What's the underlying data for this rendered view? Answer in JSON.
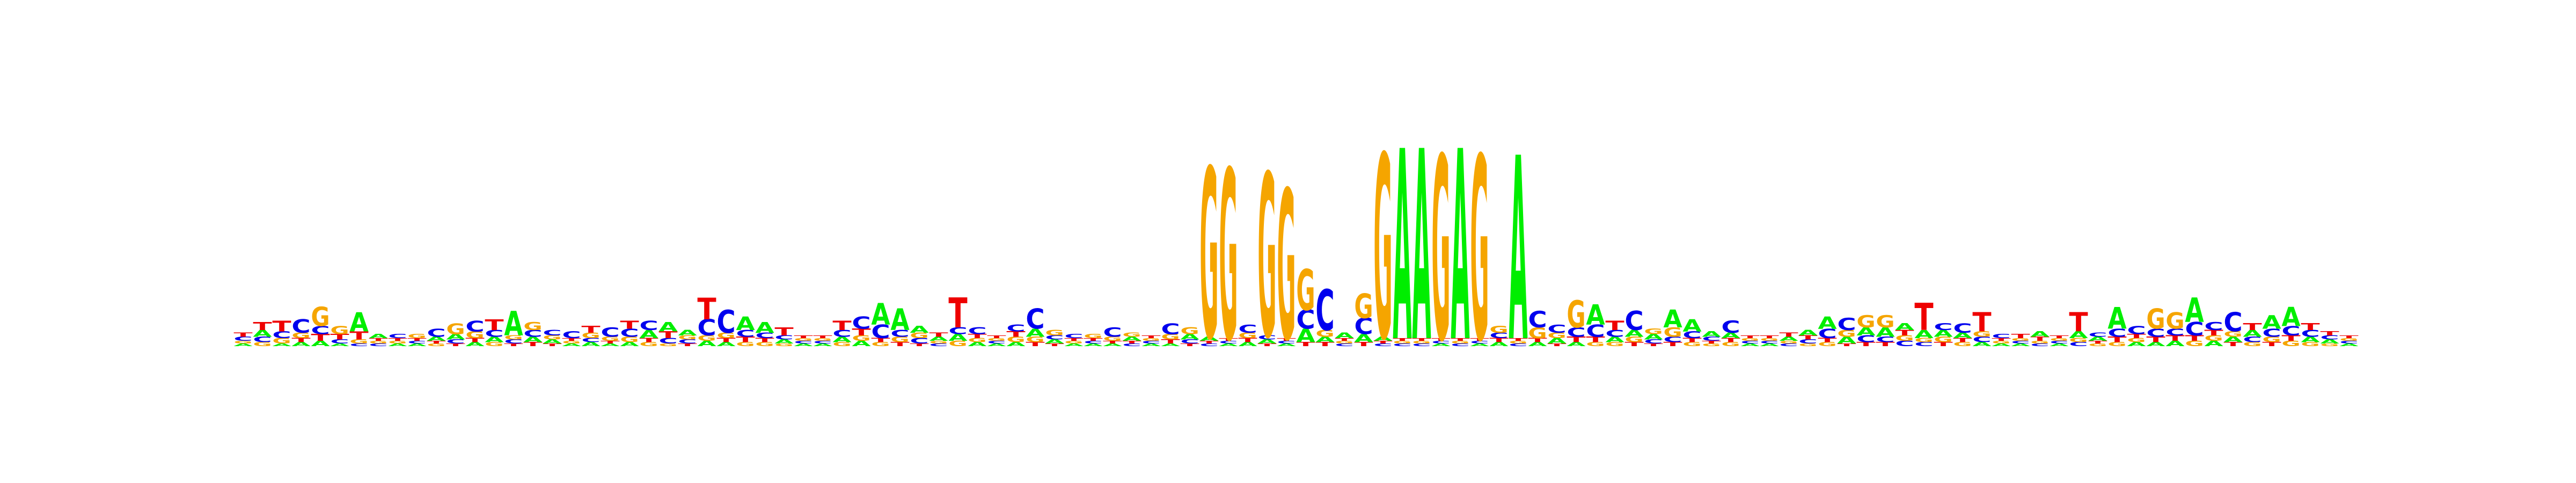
{
  "figure": {
    "type": "sequence-logo",
    "alphabet": [
      "A",
      "C",
      "G",
      "T"
    ],
    "colors": {
      "A": "#00ee00",
      "C": "#0000ee",
      "G": "#f5a500",
      "T": "#ee0000"
    },
    "ymax_bits": 2.0
  },
  "chart_data": {
    "type": "sequence-logo",
    "positions": [
      {
        "A": 0.02,
        "C": 0.03,
        "G": 0.02,
        "T": 0.03
      },
      {
        "A": 0.05,
        "C": 0.04,
        "G": 0.03,
        "T": 0.06
      },
      {
        "A": 0.02,
        "C": 0.05,
        "G": 0.04,
        "T": 0.08
      },
      {
        "A": 0.03,
        "C": 0.1,
        "G": 0.04,
        "T": 0.03
      },
      {
        "A": 0.04,
        "C": 0.06,
        "G": 0.14,
        "T": 0.05
      },
      {
        "A": 0.02,
        "C": 0.03,
        "G": 0.06,
        "T": 0.04
      },
      {
        "A": 0.14,
        "C": 0.02,
        "G": 0.03,
        "T": 0.06
      },
      {
        "A": 0.03,
        "C": 0.02,
        "G": 0.02,
        "T": 0.02
      },
      {
        "A": 0.02,
        "C": 0.03,
        "G": 0.02,
        "T": 0.02
      },
      {
        "A": 0.02,
        "C": 0.02,
        "G": 0.03,
        "T": 0.02
      },
      {
        "A": 0.03,
        "C": 0.06,
        "G": 0.02,
        "T": 0.02
      },
      {
        "A": 0.04,
        "C": 0.03,
        "G": 0.08,
        "T": 0.02
      },
      {
        "A": 0.03,
        "C": 0.08,
        "G": 0.05,
        "T": 0.03
      },
      {
        "A": 0.04,
        "C": 0.05,
        "G": 0.03,
        "T": 0.08
      },
      {
        "A": 0.18,
        "C": 0.03,
        "G": 0.03,
        "T": 0.02
      },
      {
        "A": 0.04,
        "C": 0.05,
        "G": 0.06,
        "T": 0.03
      },
      {
        "A": 0.03,
        "C": 0.04,
        "G": 0.03,
        "T": 0.02
      },
      {
        "A": 0.02,
        "C": 0.05,
        "G": 0.02,
        "T": 0.02
      },
      {
        "A": 0.03,
        "C": 0.03,
        "G": 0.04,
        "T": 0.05
      },
      {
        "A": 0.02,
        "C": 0.07,
        "G": 0.03,
        "T": 0.02
      },
      {
        "A": 0.03,
        "C": 0.06,
        "G": 0.04,
        "T": 0.06
      },
      {
        "A": 0.06,
        "C": 0.07,
        "G": 0.03,
        "T": 0.03
      },
      {
        "A": 0.07,
        "C": 0.04,
        "G": 0.02,
        "T": 0.05
      },
      {
        "A": 0.04,
        "C": 0.03,
        "G": 0.03,
        "T": 0.02
      },
      {
        "A": 0.04,
        "C": 0.12,
        "G": 0.04,
        "T": 0.16
      },
      {
        "A": 0.03,
        "C": 0.17,
        "G": 0.04,
        "T": 0.03
      },
      {
        "A": 0.1,
        "C": 0.05,
        "G": 0.03,
        "T": 0.04
      },
      {
        "A": 0.08,
        "C": 0.04,
        "G": 0.03,
        "T": 0.03
      },
      {
        "A": 0.03,
        "C": 0.03,
        "G": 0.02,
        "T": 0.06
      },
      {
        "A": 0.02,
        "C": 0.02,
        "G": 0.02,
        "T": 0.02
      },
      {
        "A": 0.02,
        "C": 0.02,
        "G": 0.02,
        "T": 0.02
      },
      {
        "A": 0.04,
        "C": 0.05,
        "G": 0.03,
        "T": 0.07
      },
      {
        "A": 0.04,
        "C": 0.09,
        "G": 0.04,
        "T": 0.05
      },
      {
        "A": 0.16,
        "C": 0.1,
        "G": 0.03,
        "T": 0.03
      },
      {
        "A": 0.16,
        "C": 0.05,
        "G": 0.04,
        "T": 0.03
      },
      {
        "A": 0.05,
        "C": 0.04,
        "G": 0.04,
        "T": 0.02
      },
      {
        "A": 0.03,
        "C": 0.02,
        "G": 0.02,
        "T": 0.03
      },
      {
        "A": 0.05,
        "C": 0.05,
        "G": 0.04,
        "T": 0.22
      },
      {
        "A": 0.03,
        "C": 0.05,
        "G": 0.03,
        "T": 0.03
      },
      {
        "A": 0.02,
        "C": 0.02,
        "G": 0.02,
        "T": 0.02
      },
      {
        "A": 0.03,
        "C": 0.05,
        "G": 0.04,
        "T": 0.04
      },
      {
        "A": 0.06,
        "C": 0.15,
        "G": 0.04,
        "T": 0.03
      },
      {
        "A": 0.03,
        "C": 0.03,
        "G": 0.04,
        "T": 0.02
      },
      {
        "A": 0.02,
        "C": 0.03,
        "G": 0.02,
        "T": 0.02
      },
      {
        "A": 0.02,
        "C": 0.02,
        "G": 0.03,
        "T": 0.02
      },
      {
        "A": 0.02,
        "C": 0.07,
        "G": 0.03,
        "T": 0.02
      },
      {
        "A": 0.03,
        "C": 0.02,
        "G": 0.03,
        "T": 0.02
      },
      {
        "A": 0.02,
        "C": 0.02,
        "G": 0.02,
        "T": 0.02
      },
      {
        "A": 0.02,
        "C": 0.08,
        "G": 0.04,
        "T": 0.03
      },
      {
        "A": 0.04,
        "C": 0.03,
        "G": 0.05,
        "T": 0.02
      },
      {
        "A": 0.03,
        "C": 0.02,
        "G": 1.25,
        "T": 0.02
      },
      {
        "A": 0.02,
        "C": 0.02,
        "G": 1.25,
        "T": 0.02
      },
      {
        "A": 0.03,
        "C": 0.06,
        "G": 0.04,
        "T": 0.03
      },
      {
        "A": 0.03,
        "C": 0.03,
        "G": 1.2,
        "T": 0.02
      },
      {
        "A": 0.02,
        "C": 0.02,
        "G": 1.1,
        "T": 0.02
      },
      {
        "A": 0.1,
        "C": 0.14,
        "G": 0.3,
        "T": 0.03
      },
      {
        "A": 0.04,
        "C": 0.3,
        "G": 0.05,
        "T": 0.03
      },
      {
        "A": 0.04,
        "C": 0.02,
        "G": 0.02,
        "T": 0.02
      },
      {
        "A": 0.06,
        "C": 0.12,
        "G": 0.18,
        "T": 0.03
      },
      {
        "A": 0.03,
        "C": 0.02,
        "G": 1.35,
        "T": 0.02
      },
      {
        "A": 1.4,
        "C": 0.02,
        "G": 0.02,
        "T": 0.02
      },
      {
        "A": 1.4,
        "C": 0.02,
        "G": 0.02,
        "T": 0.02
      },
      {
        "A": 0.02,
        "C": 0.02,
        "G": 1.35,
        "T": 0.02
      },
      {
        "A": 1.4,
        "C": 0.02,
        "G": 0.02,
        "T": 0.02
      },
      {
        "A": 0.02,
        "C": 0.02,
        "G": 1.35,
        "T": 0.02
      },
      {
        "A": 0.03,
        "C": 0.04,
        "G": 0.05,
        "T": 0.03
      },
      {
        "A": 1.35,
        "C": 0.02,
        "G": 0.02,
        "T": 0.02
      },
      {
        "A": 0.03,
        "C": 0.12,
        "G": 0.08,
        "T": 0.03
      },
      {
        "A": 0.04,
        "C": 0.06,
        "G": 0.04,
        "T": 0.02
      },
      {
        "A": 0.03,
        "C": 0.07,
        "G": 0.2,
        "T": 0.04
      },
      {
        "A": 0.15,
        "C": 0.09,
        "G": 0.03,
        "T": 0.04
      },
      {
        "A": 0.04,
        "C": 0.05,
        "G": 0.03,
        "T": 0.07
      },
      {
        "A": 0.05,
        "C": 0.14,
        "G": 0.04,
        "T": 0.03
      },
      {
        "A": 0.04,
        "C": 0.03,
        "G": 0.04,
        "T": 0.02
      },
      {
        "A": 0.13,
        "C": 0.04,
        "G": 0.07,
        "T": 0.03
      },
      {
        "A": 0.09,
        "C": 0.05,
        "G": 0.03,
        "T": 0.03
      },
      {
        "A": 0.04,
        "C": 0.03,
        "G": 0.02,
        "T": 0.02
      },
      {
        "A": 0.04,
        "C": 0.09,
        "G": 0.03,
        "T": 0.03
      },
      {
        "A": 0.02,
        "C": 0.02,
        "G": 0.02,
        "T": 0.02
      },
      {
        "A": 0.02,
        "C": 0.02,
        "G": 0.02,
        "T": 0.02
      },
      {
        "A": 0.03,
        "C": 0.02,
        "G": 0.02,
        "T": 0.03
      },
      {
        "A": 0.04,
        "C": 0.03,
        "G": 0.02,
        "T": 0.03
      },
      {
        "A": 0.09,
        "C": 0.07,
        "G": 0.03,
        "T": 0.03
      },
      {
        "A": 0.05,
        "C": 0.09,
        "G": 0.05,
        "T": 0.02
      },
      {
        "A": 0.06,
        "C": 0.05,
        "G": 0.09,
        "T": 0.03
      },
      {
        "A": 0.07,
        "C": 0.04,
        "G": 0.09,
        "T": 0.03
      },
      {
        "A": 0.05,
        "C": 0.04,
        "G": 0.04,
        "T": 0.04
      },
      {
        "A": 0.06,
        "C": 0.03,
        "G": 0.03,
        "T": 0.2
      },
      {
        "A": 0.05,
        "C": 0.05,
        "G": 0.04,
        "T": 0.03
      },
      {
        "A": 0.04,
        "C": 0.07,
        "G": 0.03,
        "T": 0.03
      },
      {
        "A": 0.03,
        "C": 0.04,
        "G": 0.04,
        "T": 0.14
      },
      {
        "A": 0.02,
        "C": 0.03,
        "G": 0.02,
        "T": 0.02
      },
      {
        "A": 0.02,
        "C": 0.02,
        "G": 0.02,
        "T": 0.03
      },
      {
        "A": 0.04,
        "C": 0.02,
        "G": 0.02,
        "T": 0.03
      },
      {
        "A": 0.02,
        "C": 0.02,
        "G": 0.02,
        "T": 0.02
      },
      {
        "A": 0.05,
        "C": 0.03,
        "G": 0.03,
        "T": 0.14
      },
      {
        "A": 0.03,
        "C": 0.03,
        "G": 0.02,
        "T": 0.02
      },
      {
        "A": 0.16,
        "C": 0.06,
        "G": 0.03,
        "T": 0.04
      },
      {
        "A": 0.03,
        "C": 0.06,
        "G": 0.03,
        "T": 0.03
      },
      {
        "A": 0.03,
        "C": 0.06,
        "G": 0.15,
        "T": 0.04
      },
      {
        "A": 0.04,
        "C": 0.05,
        "G": 0.12,
        "T": 0.04
      },
      {
        "A": 0.18,
        "C": 0.1,
        "G": 0.04,
        "T": 0.04
      },
      {
        "A": 0.04,
        "C": 0.06,
        "G": 0.04,
        "T": 0.04
      },
      {
        "A": 0.04,
        "C": 0.14,
        "G": 0.04,
        "T": 0.03
      },
      {
        "A": 0.05,
        "C": 0.04,
        "G": 0.03,
        "T": 0.05
      },
      {
        "A": 0.1,
        "C": 0.06,
        "G": 0.04,
        "T": 0.03
      },
      {
        "A": 0.14,
        "C": 0.07,
        "G": 0.04,
        "T": 0.04
      },
      {
        "A": 0.04,
        "C": 0.05,
        "G": 0.03,
        "T": 0.05
      },
      {
        "A": 0.03,
        "C": 0.03,
        "G": 0.02,
        "T": 0.03
      },
      {
        "A": 0.02,
        "C": 0.02,
        "G": 0.02,
        "T": 0.02
      }
    ]
  }
}
